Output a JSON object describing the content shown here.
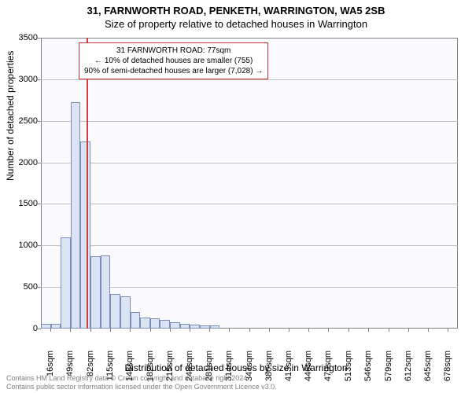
{
  "title_main": "31, FARNWORTH ROAD, PENKETH, WARRINGTON, WA5 2SB",
  "title_sub": "Size of property relative to detached houses in Warrington",
  "ylabel": "Number of detached properties",
  "xlabel": "Distribution of detached houses by size in Warrington",
  "annotation": {
    "line1": "31 FARNWORTH ROAD: 77sqm",
    "line2": "← 10% of detached houses are smaller (755)",
    "line3": "90% of semi-detached houses are larger (7,028) →"
  },
  "footer": {
    "line1": "Contains HM Land Registry data © Crown copyright and database right 2024.",
    "line2": "Contains public sector information licensed under the Open Government Licence v3.0."
  },
  "chart": {
    "type": "histogram",
    "plot_bg": "#fafaff",
    "grid_color": "#c0c0c0",
    "border_color": "#808080",
    "bar_fill": "#dbe4f5",
    "bar_border": "#7a8db8",
    "marker_color": "#d43b3b",
    "annotation_border": "#cc3333",
    "ylim": [
      0,
      3500
    ],
    "ytick_step": 500,
    "marker_x_sqm": 77,
    "x_tick_labels": [
      "16sqm",
      "49sqm",
      "82sqm",
      "115sqm",
      "148sqm",
      "182sqm",
      "215sqm",
      "248sqm",
      "281sqm",
      "314sqm",
      "347sqm",
      "380sqm",
      "413sqm",
      "446sqm",
      "479sqm",
      "513sqm",
      "546sqm",
      "579sqm",
      "612sqm",
      "645sqm",
      "678sqm"
    ],
    "x_tick_positions_sqm": [
      16,
      49,
      82,
      115,
      148,
      182,
      215,
      248,
      281,
      314,
      347,
      380,
      413,
      446,
      479,
      513,
      546,
      579,
      612,
      645,
      678
    ],
    "bar_values": [
      60,
      60,
      1100,
      2720,
      2250,
      870,
      880,
      420,
      390,
      200,
      130,
      120,
      100,
      80,
      60,
      50,
      40,
      40,
      0,
      0,
      0,
      0,
      0,
      0,
      0,
      0,
      0,
      0,
      0,
      0,
      0,
      0,
      0,
      0,
      0,
      0,
      0,
      0,
      0,
      0,
      0,
      0
    ],
    "x_data_min": 0,
    "x_data_max": 695,
    "title_fontsize": 13,
    "label_fontsize": 12,
    "tick_fontsize": 11
  }
}
